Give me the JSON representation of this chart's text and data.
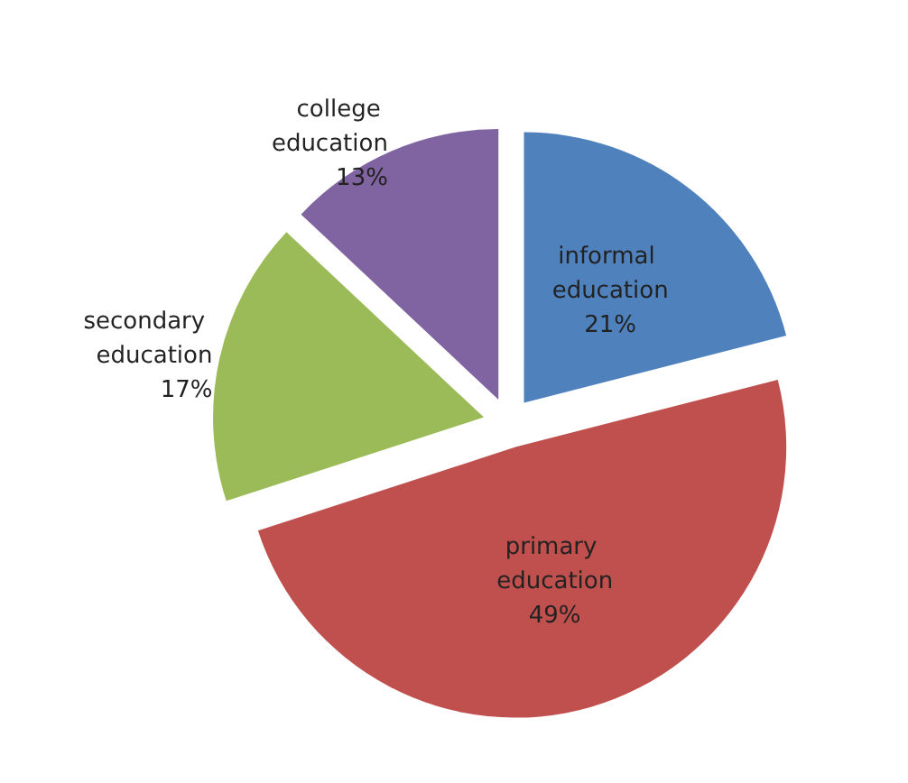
{
  "chart_data": {
    "type": "pie",
    "categories": [
      "informal education",
      "primary education",
      "secondary education",
      "college education"
    ],
    "values": [
      21,
      49,
      17,
      13
    ],
    "value_labels": [
      "21%",
      "49%",
      "17%",
      "13%"
    ],
    "colors": [
      "#4f81bd",
      "#c0504d",
      "#9bbb59",
      "#8064a2"
    ],
    "legend": false
  }
}
